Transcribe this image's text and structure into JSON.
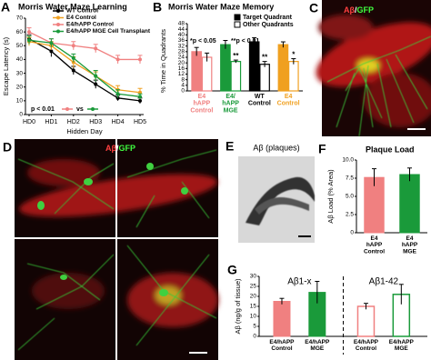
{
  "chart_data": [
    {
      "letter": "A",
      "type": "line",
      "title": "Morris Water Maze Learning",
      "x_label": "Hidden Day",
      "y_label": "Escape Latency (s)",
      "categories": [
        "HD0",
        "HD1",
        "HD2",
        "HD3",
        "HD4",
        "HD5"
      ],
      "ylim": [
        0,
        70
      ],
      "yticks": [
        0,
        10,
        20,
        30,
        40,
        50,
        60,
        70
      ],
      "series": [
        {
          "name": "WT Control",
          "color": "#000000",
          "values": [
            55,
            46,
            32,
            22,
            12,
            10
          ],
          "errors": [
            3,
            4,
            3,
            3,
            2,
            2
          ]
        },
        {
          "name": "E4 Control",
          "color": "#f0a020",
          "values": [
            53,
            50,
            38,
            28,
            18,
            16
          ],
          "errors": [
            3,
            3,
            4,
            3,
            3,
            3
          ]
        },
        {
          "name": "E4/hAPP Control",
          "color": "#f08080",
          "values": [
            60,
            52,
            50,
            48,
            40,
            40
          ],
          "errors": [
            3,
            3,
            3,
            3,
            3,
            3
          ]
        },
        {
          "name": "E4/hAPP MGE Cell Transplant",
          "color": "#1a9a3a",
          "values": [
            54,
            52,
            41,
            28,
            15,
            13
          ],
          "errors": [
            3,
            3,
            3,
            4,
            3,
            2
          ]
        }
      ],
      "annotation": {
        "text": "p < 0.01",
        "vs": "vs"
      }
    },
    {
      "letter": "B",
      "type": "grouped_bar",
      "title": "Morris Water Maze Memory",
      "y_label": "% Time in Quadrants",
      "categories": [
        "E4\nhAPP\nControl",
        "E4/\nhAPP\nMGE",
        "WT\nControl",
        "E4\nControl"
      ],
      "category_colors": [
        "#f08080",
        "#1a9a3a",
        "#000000",
        "#f0a020"
      ],
      "ylim": [
        0,
        48
      ],
      "yticks": [
        0,
        4,
        8,
        12,
        16,
        20,
        24,
        28,
        32,
        36,
        40,
        44,
        48
      ],
      "series": [
        {
          "name": "Target Quadrant",
          "fill": "solid",
          "values": [
            28,
            33,
            35,
            33
          ],
          "errors": [
            3,
            3,
            3,
            2
          ]
        },
        {
          "name": "Other Quadrants",
          "fill": "hollow",
          "values": [
            24,
            21,
            19,
            21
          ],
          "errors": [
            3,
            1,
            2,
            2
          ],
          "significance": [
            null,
            "**",
            "**",
            "*"
          ]
        }
      ],
      "annotations": [
        "*p < 0.05",
        "**p < 0.01"
      ]
    },
    {
      "letter": "F",
      "type": "bar",
      "title": "Plaque Load",
      "y_label": "Aβ Load (% Area)",
      "categories": [
        "E4\nhAPP\nControl",
        "E4\nhAPP\nMGE"
      ],
      "colors": [
        "#f08080",
        "#1a9a3a"
      ],
      "fills": [
        "solid",
        "solid"
      ],
      "values": [
        7.6,
        8.0
      ],
      "errors": [
        1.2,
        0.9
      ],
      "ylim": [
        0,
        10
      ],
      "yticks": [
        0,
        2.5,
        {
          "value": 5,
          "label": "5.0"
        },
        7.5,
        {
          "value": 10,
          "label": "10.0"
        }
      ]
    },
    {
      "letter": "G",
      "type": "bar",
      "y_label": "Aβ (ng/g of tissue)",
      "group_titles": [
        "Aβ1-x",
        "Aβ1-42"
      ],
      "categories": [
        "E4/hAPP\nControl",
        "E4/hAPP\nMGE",
        "E4/hAPP\nControl",
        "E4/hAPP\nMGE"
      ],
      "colors": [
        "#f08080",
        "#1a9a3a",
        "#f08080",
        "#1a9a3a"
      ],
      "fills": [
        "solid",
        "solid",
        "hollow",
        "hollow"
      ],
      "values": [
        17.5,
        22,
        15,
        21
      ],
      "errors": [
        1.5,
        5.5,
        1.5,
        5
      ],
      "ylim": [
        0,
        30
      ],
      "yticks": [
        0,
        5,
        10,
        15,
        20,
        25,
        30
      ]
    }
  ],
  "images": [
    {
      "letter": "C",
      "caption": [
        "Aβ",
        "/",
        "GFP"
      ]
    },
    {
      "letter": "D",
      "caption": [
        "Aβ",
        "/",
        "GFP"
      ]
    },
    {
      "letter": "E",
      "caption": [
        "Aβ (plaques)"
      ]
    }
  ]
}
